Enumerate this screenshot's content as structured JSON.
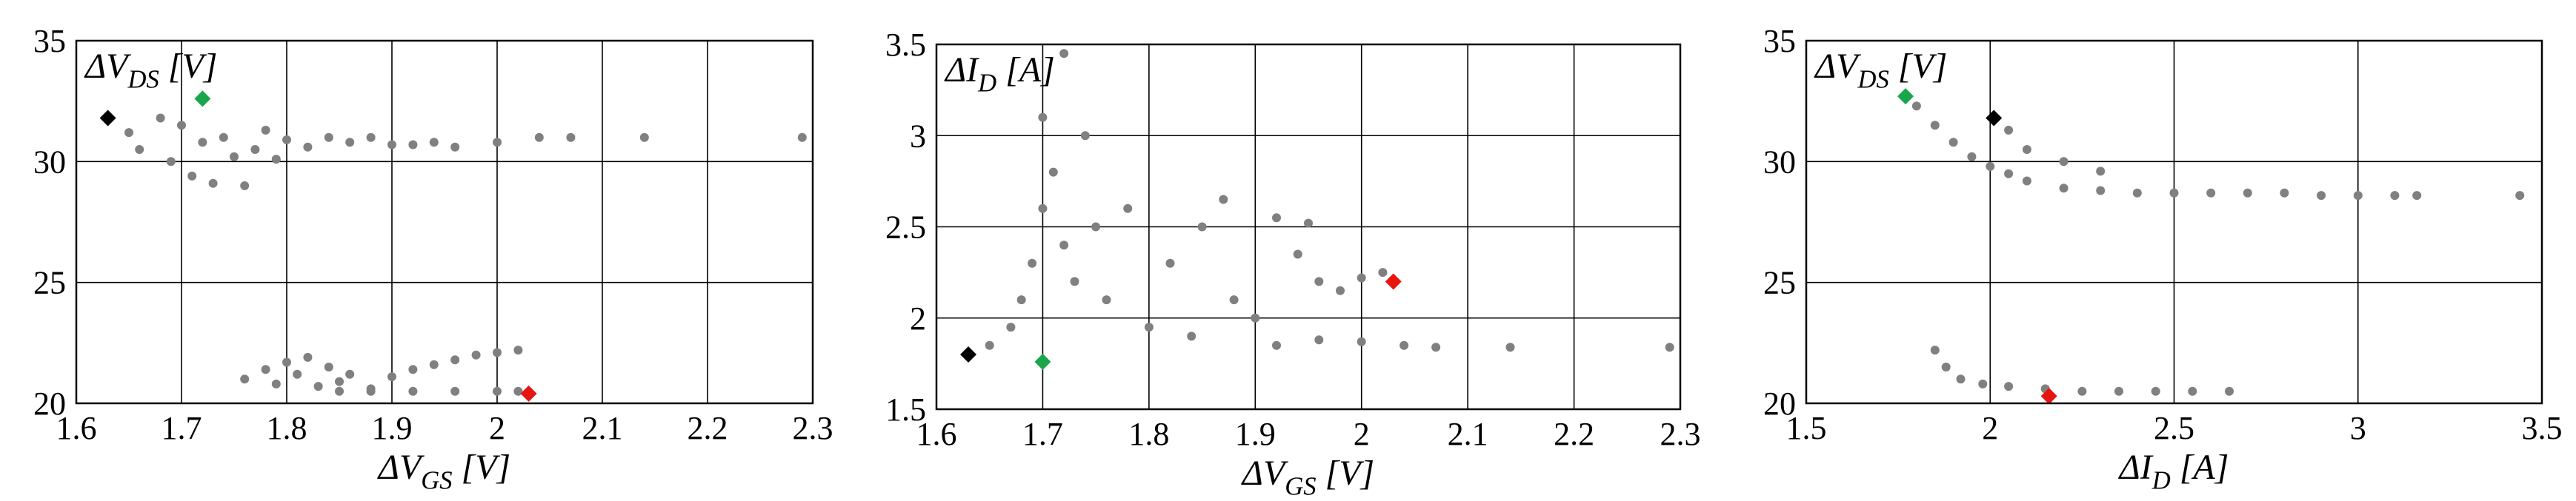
{
  "chart_data": [
    {
      "type": "scatter",
      "xlabel": "ΔV_GS [V]",
      "ylabel": "ΔV_DS [V]",
      "xlim": [
        1.6,
        2.3
      ],
      "ylim": [
        20,
        35
      ],
      "xticks": [
        "1.6",
        "1.7",
        "1.8",
        "1.9",
        "2",
        "2.1",
        "2.2",
        "2.3"
      ],
      "yticks": [
        "20",
        "25",
        "30",
        "35"
      ],
      "grid": true,
      "series": [
        {
          "color": "#808080",
          "points": [
            [
              1.65,
              31.2
            ],
            [
              1.66,
              30.5
            ],
            [
              1.68,
              31.8
            ],
            [
              1.69,
              30.0
            ],
            [
              1.7,
              31.5
            ],
            [
              1.71,
              29.4
            ],
            [
              1.72,
              30.8
            ],
            [
              1.73,
              29.1
            ],
            [
              1.74,
              31.0
            ],
            [
              1.75,
              30.2
            ],
            [
              1.76,
              29.0
            ],
            [
              1.77,
              30.5
            ],
            [
              1.78,
              31.3
            ],
            [
              1.79,
              30.1
            ],
            [
              1.8,
              30.9
            ],
            [
              1.82,
              30.6
            ],
            [
              1.84,
              31.0
            ],
            [
              1.86,
              30.8
            ],
            [
              1.88,
              31.0
            ],
            [
              1.9,
              30.7
            ],
            [
              1.92,
              30.7
            ],
            [
              1.94,
              30.8
            ],
            [
              1.96,
              30.6
            ],
            [
              2.0,
              30.8
            ],
            [
              2.04,
              31.0
            ],
            [
              2.07,
              31.0
            ],
            [
              2.14,
              31.0
            ],
            [
              2.29,
              31.0
            ],
            [
              1.76,
              21.0
            ],
            [
              1.78,
              21.4
            ],
            [
              1.79,
              20.8
            ],
            [
              1.8,
              21.7
            ],
            [
              1.81,
              21.2
            ],
            [
              1.82,
              21.9
            ],
            [
              1.83,
              20.7
            ],
            [
              1.84,
              21.5
            ],
            [
              1.85,
              20.9
            ],
            [
              1.86,
              21.2
            ],
            [
              1.88,
              20.6
            ],
            [
              1.9,
              21.1
            ],
            [
              1.92,
              21.4
            ],
            [
              1.94,
              21.6
            ],
            [
              1.96,
              21.8
            ],
            [
              1.98,
              22.0
            ],
            [
              2.0,
              22.1
            ],
            [
              2.02,
              22.2
            ],
            [
              1.85,
              20.5
            ],
            [
              1.88,
              20.5
            ],
            [
              1.92,
              20.5
            ],
            [
              1.96,
              20.5
            ],
            [
              2.0,
              20.5
            ],
            [
              2.02,
              20.5
            ]
          ]
        }
      ],
      "markers": [
        {
          "x": 1.63,
          "y": 31.8,
          "color": "#000000"
        },
        {
          "x": 1.72,
          "y": 32.6,
          "color": "#1aa64a"
        },
        {
          "x": 2.03,
          "y": 20.4,
          "color": "#e8140f"
        }
      ]
    },
    {
      "type": "scatter",
      "xlabel": "ΔV_GS [V]",
      "ylabel": "ΔI_D [A]",
      "xlim": [
        1.6,
        2.3
      ],
      "ylim": [
        1.5,
        3.5
      ],
      "xticks": [
        "1.6",
        "1.7",
        "1.8",
        "1.9",
        "2",
        "2.1",
        "2.2",
        "2.3"
      ],
      "yticks": [
        "1.5",
        "2",
        "2.5",
        "3",
        "3.5"
      ],
      "grid": true,
      "series": [
        {
          "color": "#808080",
          "points": [
            [
              1.65,
              1.85
            ],
            [
              1.67,
              1.95
            ],
            [
              1.68,
              2.1
            ],
            [
              1.69,
              2.3
            ],
            [
              1.7,
              2.6
            ],
            [
              1.7,
              3.1
            ],
            [
              1.71,
              2.8
            ],
            [
              1.72,
              2.4
            ],
            [
              1.72,
              3.45
            ],
            [
              1.73,
              2.2
            ],
            [
              1.74,
              3.0
            ],
            [
              1.75,
              2.5
            ],
            [
              1.76,
              2.1
            ],
            [
              1.78,
              2.6
            ],
            [
              1.8,
              1.95
            ],
            [
              1.82,
              2.3
            ],
            [
              1.84,
              1.9
            ],
            [
              1.85,
              2.5
            ],
            [
              1.87,
              2.65
            ],
            [
              1.88,
              2.1
            ],
            [
              1.9,
              2.0
            ],
            [
              1.92,
              2.55
            ],
            [
              1.94,
              2.35
            ],
            [
              1.95,
              2.52
            ],
            [
              1.96,
              2.2
            ],
            [
              1.98,
              2.15
            ],
            [
              2.0,
              2.22
            ],
            [
              2.02,
              2.25
            ],
            [
              1.92,
              1.85
            ],
            [
              1.96,
              1.88
            ],
            [
              2.0,
              1.87
            ],
            [
              2.04,
              1.85
            ],
            [
              2.07,
              1.84
            ],
            [
              2.14,
              1.84
            ],
            [
              2.29,
              1.84
            ]
          ]
        }
      ],
      "markers": [
        {
          "x": 1.63,
          "y": 1.8,
          "color": "#000000"
        },
        {
          "x": 1.7,
          "y": 1.76,
          "color": "#1aa64a"
        },
        {
          "x": 2.03,
          "y": 2.2,
          "color": "#e8140f"
        }
      ]
    },
    {
      "type": "scatter",
      "xlabel": "ΔI_D [A]",
      "ylabel": "ΔV_DS [V]",
      "xlim": [
        1.5,
        3.5
      ],
      "ylim": [
        20,
        35
      ],
      "xticks": [
        "1.5",
        "2",
        "2.5",
        "3",
        "3.5"
      ],
      "yticks": [
        "20",
        "25",
        "30",
        "35"
      ],
      "grid": true,
      "series": [
        {
          "color": "#808080",
          "points": [
            [
              1.8,
              32.3
            ],
            [
              1.85,
              31.5
            ],
            [
              1.9,
              30.8
            ],
            [
              1.95,
              30.2
            ],
            [
              2.0,
              29.8
            ],
            [
              2.05,
              29.5
            ],
            [
              2.1,
              29.2
            ],
            [
              2.2,
              28.9
            ],
            [
              2.3,
              28.8
            ],
            [
              2.4,
              28.7
            ],
            [
              2.5,
              28.7
            ],
            [
              2.6,
              28.7
            ],
            [
              2.7,
              28.7
            ],
            [
              2.8,
              28.7
            ],
            [
              2.9,
              28.6
            ],
            [
              3.0,
              28.6
            ],
            [
              3.1,
              28.6
            ],
            [
              3.16,
              28.6
            ],
            [
              3.44,
              28.6
            ],
            [
              2.05,
              31.3
            ],
            [
              2.1,
              30.5
            ],
            [
              2.2,
              30.0
            ],
            [
              2.3,
              29.6
            ],
            [
              1.85,
              22.2
            ],
            [
              1.88,
              21.5
            ],
            [
              1.92,
              21.0
            ],
            [
              1.98,
              20.8
            ],
            [
              2.05,
              20.7
            ],
            [
              2.15,
              20.6
            ],
            [
              2.25,
              20.5
            ],
            [
              2.35,
              20.5
            ],
            [
              2.45,
              20.5
            ],
            [
              2.55,
              20.5
            ],
            [
              2.65,
              20.5
            ]
          ]
        }
      ],
      "markers": [
        {
          "x": 1.77,
          "y": 32.7,
          "color": "#1aa64a"
        },
        {
          "x": 2.01,
          "y": 31.8,
          "color": "#000000"
        },
        {
          "x": 2.16,
          "y": 20.3,
          "color": "#e8140f"
        }
      ]
    }
  ]
}
